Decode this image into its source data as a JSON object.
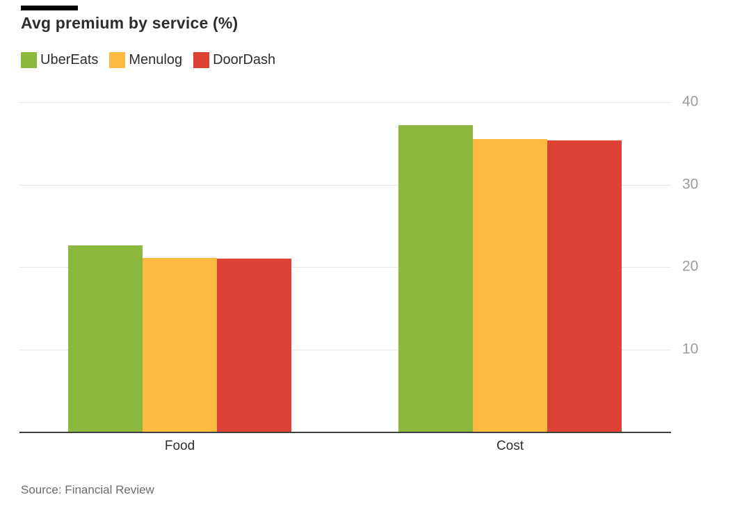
{
  "chart_data": {
    "type": "bar",
    "title": "Avg premium by service (%)",
    "categories": [
      "Food",
      "Cost"
    ],
    "series": [
      {
        "name": "UberEats",
        "color": "#8CB83E",
        "values": [
          22.6,
          37.2
        ]
      },
      {
        "name": "Menulog",
        "color": "#FDBA42",
        "values": [
          21.1,
          35.5
        ]
      },
      {
        "name": "DoorDash",
        "color": "#DE4136",
        "values": [
          21.0,
          35.4
        ]
      }
    ],
    "xlabel": "",
    "ylabel": "",
    "ylim": [
      0,
      40
    ],
    "yticks": [
      10,
      20,
      30,
      40
    ],
    "grid": true,
    "legend_position": "top-left"
  },
  "source": {
    "label": "Source: Financial Review"
  },
  "colors": {
    "header_rule": "#000000",
    "title_text": "#2d2d2d",
    "legend_text": "#2d2d2d",
    "gridline": "#e7e7e7",
    "tick_label": "#9c9c9c",
    "axis_line": "#3f3f3f",
    "category_label": "#2d2d2d",
    "source_text": "#6b6b6b"
  }
}
